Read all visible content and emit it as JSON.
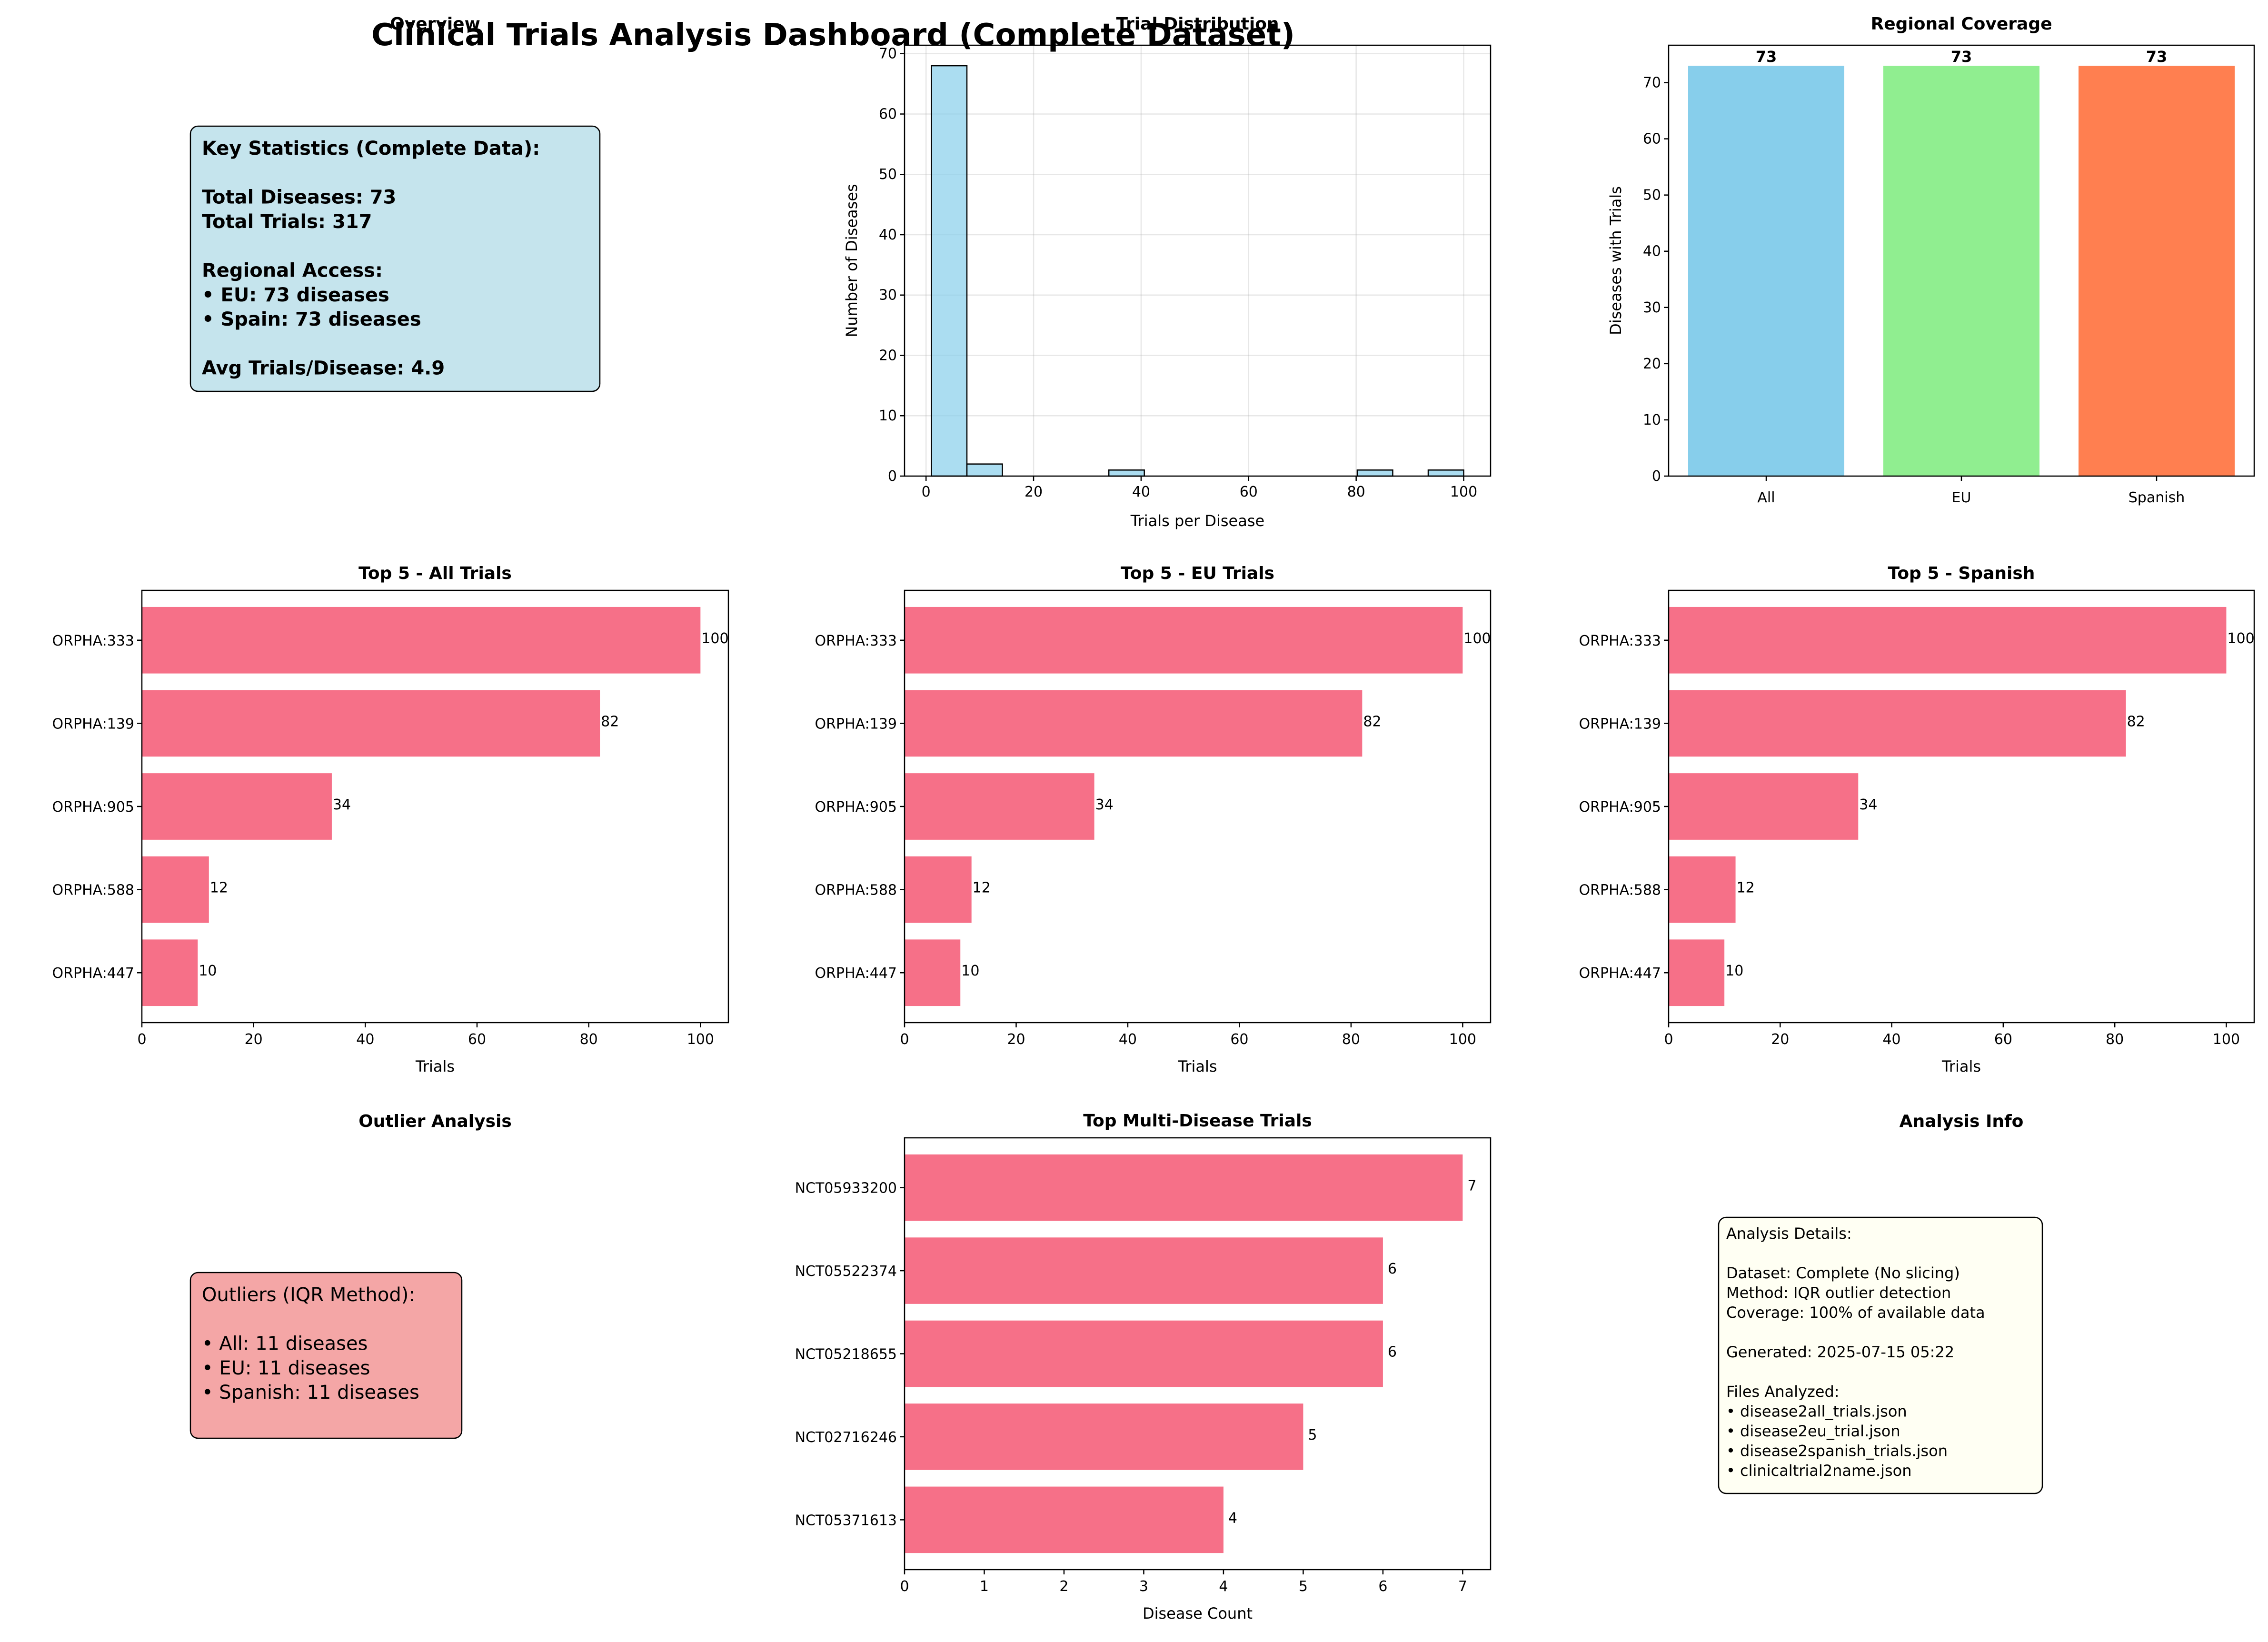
{
  "title": "Clinical Trials Analysis Dashboard (Complete Dataset)",
  "overview": {
    "title": "Overview",
    "lines": [
      "Key Statistics (Complete Data):",
      "",
      "Total Diseases: 73",
      "Total Trials: 317",
      "",
      "Regional Access:",
      "• EU: 73 diseases",
      "• Spain: 73 diseases",
      "",
      "Avg Trials/Disease: 4.9"
    ],
    "box_color": "#add8e6"
  },
  "outliers": {
    "title": "Outlier Analysis",
    "lines": [
      "Outliers (IQR Method):",
      "",
      "• All: 11 diseases",
      "• EU: 11 diseases",
      "• Spanish: 11 diseases"
    ],
    "box_color": "#f08080"
  },
  "analysis_info": {
    "title": "Analysis Info",
    "lines": [
      "Analysis Details:",
      "",
      "Dataset: Complete (No slicing)",
      "Method: IQR outlier detection",
      "Coverage: 100% of available data",
      "",
      "Generated: 2025-07-15 05:22",
      "",
      "Files Analyzed:",
      "• disease2all_trials.json",
      "• disease2eu_trial.json",
      "• disease2spanish_trials.json",
      "• clinicaltrial2name.json"
    ],
    "box_color": "#fffff0"
  },
  "colors": {
    "histogram": "#87ceeb",
    "top_bars": "#f67088",
    "regional": [
      "#87ceeb",
      "#90ee90",
      "#ff7f50"
    ]
  },
  "chart_data": [
    {
      "id": "hist",
      "type": "bar",
      "title": "Trial Distribution",
      "xlabel": "Trials per Disease",
      "ylabel": "Number of Diseases",
      "bin_edges": [
        1,
        7.6,
        14.2,
        20.8,
        27.4,
        34,
        40.6,
        47.2,
        53.8,
        60.4,
        67,
        73.6,
        80.2,
        86.8,
        93.4,
        100
      ],
      "values": [
        68,
        2,
        0,
        0,
        0,
        1,
        0,
        0,
        0,
        0,
        0,
        0,
        1,
        0,
        1
      ],
      "xlim": [
        -4,
        105
      ],
      "ylim": [
        0,
        71.4
      ],
      "xticks": [
        0,
        20,
        40,
        60,
        80,
        100
      ],
      "yticks": [
        0,
        10,
        20,
        30,
        40,
        50,
        60,
        70
      ],
      "grid": true
    },
    {
      "id": "regional",
      "type": "bar",
      "title": "Regional Coverage",
      "xlabel": "",
      "ylabel": "Diseases with Trials",
      "categories": [
        "All",
        "EU",
        "Spanish"
      ],
      "values": [
        73,
        73,
        73
      ],
      "ylim": [
        0,
        76.65
      ],
      "yticks": [
        0,
        10,
        20,
        30,
        40,
        50,
        60,
        70
      ],
      "grid": false
    },
    {
      "id": "top_all",
      "type": "bar",
      "orientation": "horizontal",
      "title": "Top 5 - All Trials",
      "xlabel": "Trials",
      "categories": [
        "ORPHA:333",
        "ORPHA:139",
        "ORPHA:905",
        "ORPHA:588",
        "ORPHA:447"
      ],
      "values": [
        100,
        82,
        34,
        12,
        10
      ],
      "xlim": [
        0,
        105
      ],
      "xticks": [
        0,
        20,
        40,
        60,
        80,
        100
      ]
    },
    {
      "id": "top_eu",
      "type": "bar",
      "orientation": "horizontal",
      "title": "Top 5 - EU Trials",
      "xlabel": "Trials",
      "categories": [
        "ORPHA:333",
        "ORPHA:139",
        "ORPHA:905",
        "ORPHA:588",
        "ORPHA:447"
      ],
      "values": [
        100,
        82,
        34,
        12,
        10
      ],
      "xlim": [
        0,
        105
      ],
      "xticks": [
        0,
        20,
        40,
        60,
        80,
        100
      ]
    },
    {
      "id": "top_spanish",
      "type": "bar",
      "orientation": "horizontal",
      "title": "Top 5 - Spanish",
      "xlabel": "Trials",
      "categories": [
        "ORPHA:333",
        "ORPHA:139",
        "ORPHA:905",
        "ORPHA:588",
        "ORPHA:447"
      ],
      "values": [
        100,
        82,
        34,
        12,
        10
      ],
      "xlim": [
        0,
        105
      ],
      "xticks": [
        0,
        20,
        40,
        60,
        80,
        100
      ]
    },
    {
      "id": "multi",
      "type": "bar",
      "orientation": "horizontal",
      "title": "Top Multi-Disease Trials",
      "xlabel": "Disease Count",
      "categories": [
        "NCT05933200",
        "NCT05522374",
        "NCT05218655",
        "NCT02716246",
        "NCT05371613"
      ],
      "values": [
        7,
        6,
        6,
        5,
        4
      ],
      "xlim": [
        0,
        7.35
      ],
      "xticks": [
        0,
        1,
        2,
        3,
        4,
        5,
        6,
        7
      ]
    }
  ]
}
